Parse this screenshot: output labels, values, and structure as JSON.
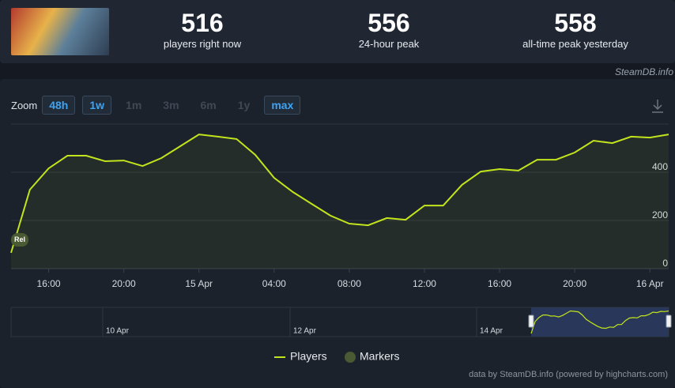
{
  "header": {
    "stats": [
      {
        "value": 516,
        "label": "players right now"
      },
      {
        "value": 556,
        "label": "24-hour peak"
      },
      {
        "value": 558,
        "label": "all-time peak yesterday"
      }
    ],
    "source": "SteamDB.info"
  },
  "zoom": {
    "label": "Zoom",
    "options": [
      {
        "label": "48h",
        "active": true
      },
      {
        "label": "1w",
        "active": true
      },
      {
        "label": "1m",
        "active": false
      },
      {
        "label": "3m",
        "active": false
      },
      {
        "label": "6m",
        "active": false
      },
      {
        "label": "1y",
        "active": false
      },
      {
        "label": "max",
        "active": true
      }
    ]
  },
  "chart_data": {
    "type": "line",
    "categories": [
      null,
      null,
      "16:00",
      null,
      null,
      null,
      "20:00",
      null,
      null,
      null,
      "15 Apr",
      null,
      null,
      null,
      "04:00",
      null,
      null,
      null,
      "08:00",
      null,
      null,
      null,
      "12:00",
      null,
      null,
      null,
      "16:00",
      null,
      null,
      null,
      "20:00",
      null,
      null,
      null,
      "16 Apr",
      null
    ],
    "series": [
      {
        "name": "Players",
        "color": "#c2e41c",
        "values": [
          66,
          328,
          416,
          469,
          469,
          446,
          449,
          426,
          459,
          508,
          557,
          548,
          538,
          472,
          377,
          318,
          269,
          220,
          187,
          180,
          210,
          203,
          262,
          262,
          348,
          403,
          413,
          407,
          452,
          452,
          482,
          531,
          521,
          548,
          544,
          557
        ]
      }
    ],
    "markers": {
      "name": "Markers",
      "color": "#4a5a33",
      "labels": [
        "Rel"
      ]
    },
    "ylim": [
      0,
      600
    ],
    "yticks": [
      0,
      200,
      400
    ],
    "grid": true,
    "navigator": {
      "labels": [
        "10 Apr",
        "12 Apr",
        "14 Apr"
      ]
    },
    "credits": "data by SteamDB.info (powered by highcharts.com)"
  }
}
